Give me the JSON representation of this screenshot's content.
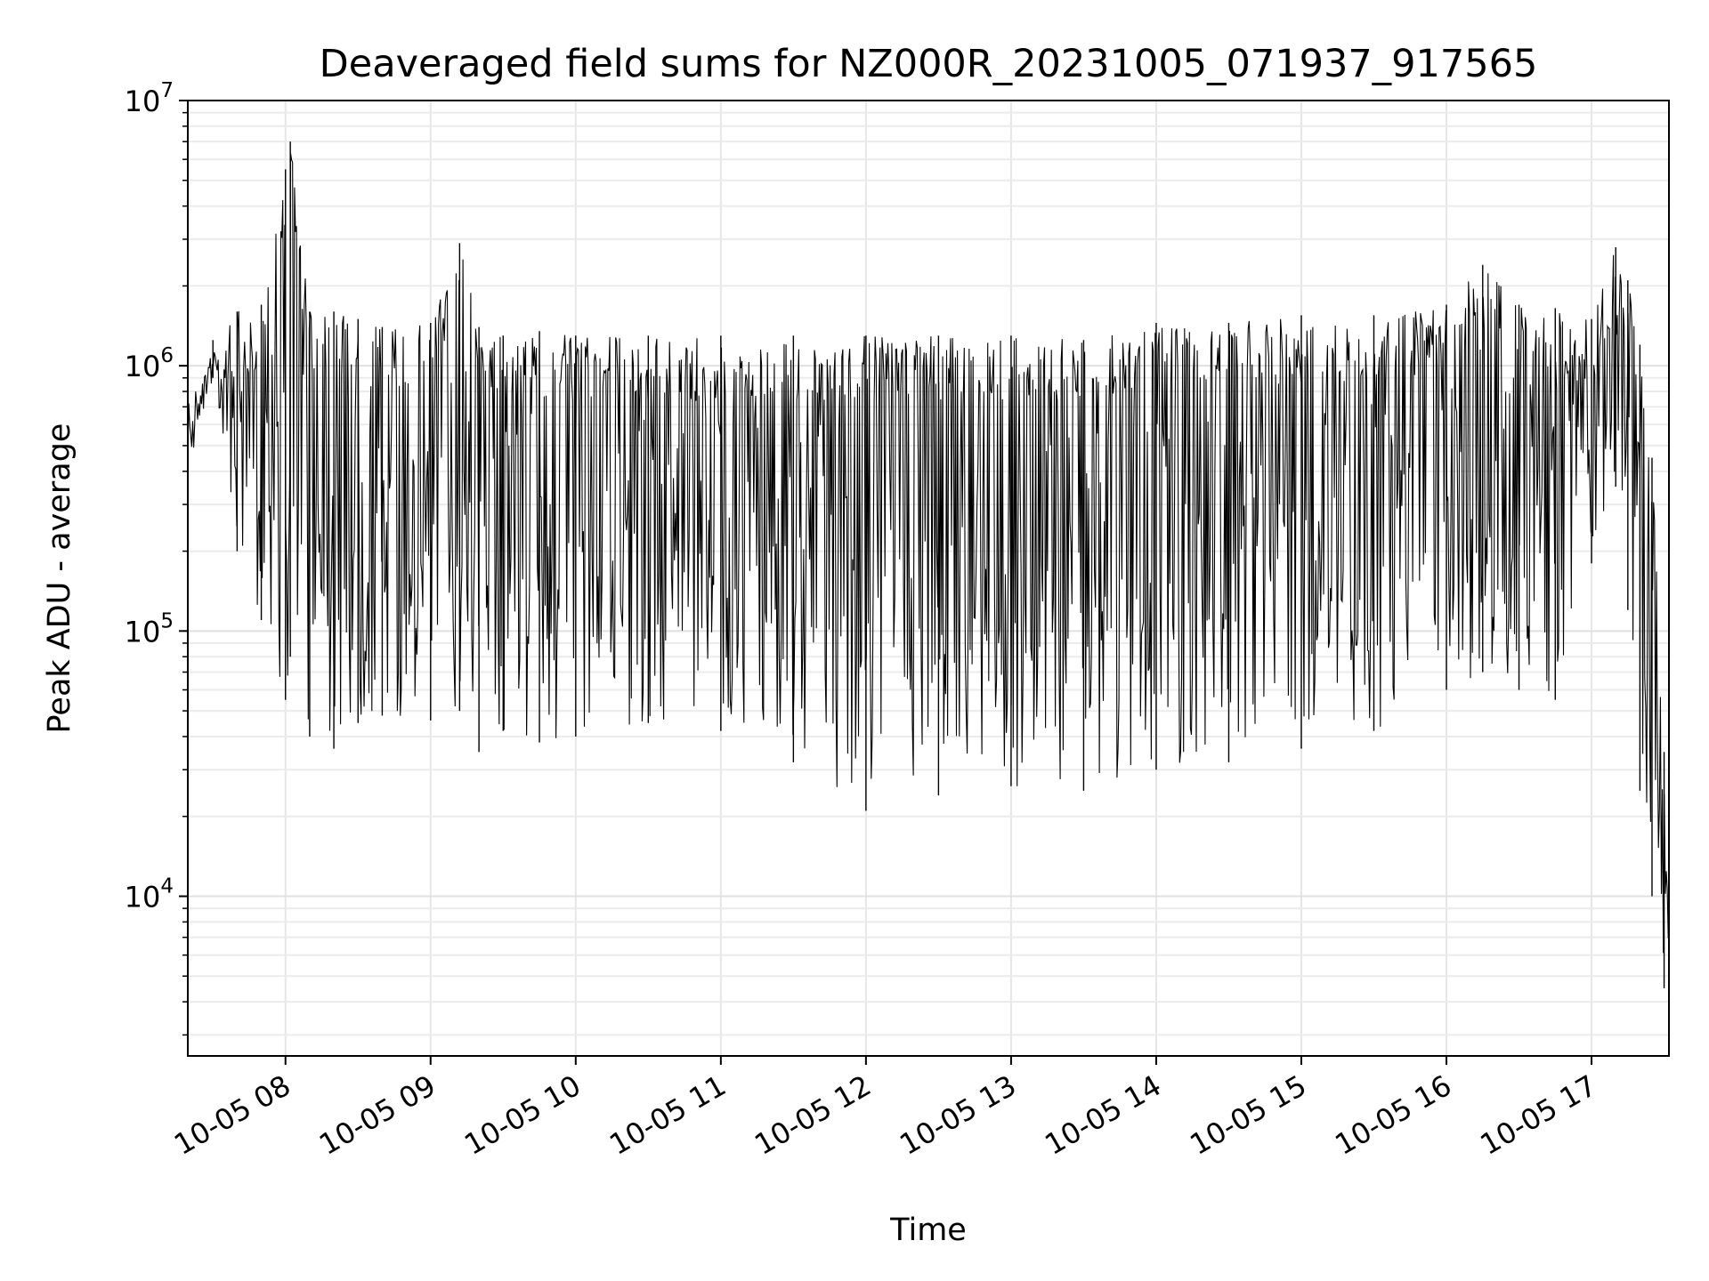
{
  "chart_data": {
    "type": "line",
    "title": "Deaveraged field sums for NZ000R_20231005_071937_917565",
    "xlabel": "Time",
    "ylabel": "Peak ADU - average",
    "yscale": "log",
    "ylim": [
      2500,
      10000000
    ],
    "xlim": [
      "2023-10-05 07:19:37",
      "2023-10-05 17:32:00"
    ],
    "grid": true,
    "x_ticks": [
      "10-05 08",
      "10-05 09",
      "10-05 10",
      "10-05 11",
      "10-05 12",
      "10-05 13",
      "10-05 14",
      "10-05 15",
      "10-05 16",
      "10-05 17"
    ],
    "y_ticks": [
      {
        "value": 10000,
        "base": "10",
        "exp": "4"
      },
      {
        "value": 100000,
        "base": "10",
        "exp": "5"
      },
      {
        "value": 1000000,
        "base": "10",
        "exp": "6"
      },
      {
        "value": 10000000,
        "base": "10",
        "exp": "7"
      }
    ],
    "series": [
      {
        "color": "#000000",
        "x": [
          "2023-10-05 07:19:37",
          "2023-10-05 07:30:00",
          "2023-10-05 07:40:00",
          "2023-10-05 07:50:00",
          "2023-10-05 08:00:00",
          "2023-10-05 08:02:00",
          "2023-10-05 08:10:00",
          "2023-10-05 08:20:00",
          "2023-10-05 08:30:00",
          "2023-10-05 08:40:00",
          "2023-10-05 09:00:00",
          "2023-10-05 09:12:00",
          "2023-10-05 09:20:00",
          "2023-10-05 09:30:00",
          "2023-10-05 09:45:00",
          "2023-10-05 10:00:00",
          "2023-10-05 10:30:00",
          "2023-10-05 11:00:00",
          "2023-10-05 11:30:00",
          "2023-10-05 12:00:00",
          "2023-10-05 12:30:00",
          "2023-10-05 13:00:00",
          "2023-10-05 13:30:00",
          "2023-10-05 14:00:00",
          "2023-10-05 14:30:00",
          "2023-10-05 15:00:00",
          "2023-10-05 15:30:00",
          "2023-10-05 16:00:00",
          "2023-10-05 16:15:00",
          "2023-10-05 16:30:00",
          "2023-10-05 16:45:00",
          "2023-10-05 17:00:00",
          "2023-10-05 17:10:00",
          "2023-10-05 17:15:00",
          "2023-10-05 17:20:00",
          "2023-10-05 17:25:00",
          "2023-10-05 17:30:00",
          "2023-10-05 17:32:00"
        ],
        "upper": [
          800000,
          1250000,
          1600000,
          1700000,
          5500000,
          7000000,
          1600000,
          1600000,
          1500000,
          1400000,
          1450000,
          2900000,
          1400000,
          1300000,
          1350000,
          1300000,
          1300000,
          1300000,
          1300000,
          1300000,
          1300000,
          1300000,
          1250000,
          1450000,
          1450000,
          1550000,
          1550000,
          1700000,
          2400000,
          1700000,
          1650000,
          1500000,
          2800000,
          2100000,
          1200000,
          450000,
          35000,
          7500
        ],
        "lower": [
          380000,
          900000,
          200000,
          110000,
          55000,
          80000,
          40000,
          36000,
          45000,
          48000,
          46000,
          50000,
          35000,
          42000,
          38000,
          40000,
          45000,
          42000,
          32000,
          21000,
          24000,
          26000,
          25000,
          30000,
          32000,
          36000,
          42000,
          60000,
          70000,
          60000,
          55000,
          180000,
          350000,
          120000,
          25000,
          10000,
          4500,
          3600
        ]
      }
    ]
  }
}
